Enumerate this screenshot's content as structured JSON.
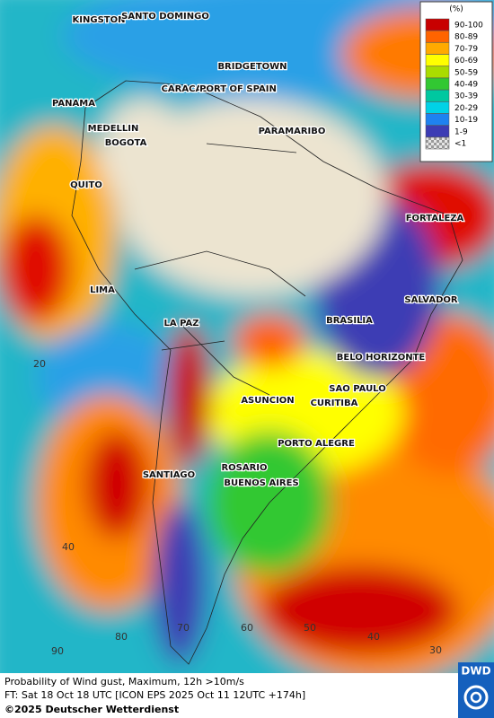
{
  "legend": {
    "title": "(%)",
    "items": [
      {
        "label": "90-100",
        "color": "#c80000"
      },
      {
        "label": "80-89",
        "color": "#ff6400"
      },
      {
        "label": "70-79",
        "color": "#ffaa00"
      },
      {
        "label": "60-69",
        "color": "#ffff00"
      },
      {
        "label": "50-59",
        "color": "#aadc00"
      },
      {
        "label": "40-49",
        "color": "#32c832"
      },
      {
        "label": "30-39",
        "color": "#00c8a0"
      },
      {
        "label": "20-29",
        "color": "#00d2e6"
      },
      {
        "label": "10-19",
        "color": "#1e82f0"
      },
      {
        "label": "1-9",
        "color": "#3c3cb4"
      },
      {
        "label": "<1",
        "color": "#bdbdbd"
      }
    ]
  },
  "cities": [
    "KINGSTON",
    "SANTO DOMINGO",
    "BRIDGETOWN",
    "CARACAS",
    "PORT OF SPAIN",
    "PANAMA",
    "MEDELLIN",
    "BOGOTA",
    "PARAMARIBO",
    "QUITO",
    "FORTALEZA",
    "LIMA",
    "SALVADOR",
    "BRASILIA",
    "LA PAZ",
    "BELO HORIZONTE",
    "SAO PAULO",
    "ASUNCION",
    "CURITIBA",
    "PORTO ALEGRE",
    "SANTIAGO",
    "ROSARIO",
    "BUENOS AIRES"
  ],
  "grid_labels": {
    "lat": [
      "20",
      "40"
    ],
    "lon": [
      "90",
      "80",
      "70",
      "60",
      "50",
      "40",
      "30"
    ]
  },
  "caption": {
    "line1": "Probability of Wind gust, Maximum, 12h >10m/s",
    "line2": "FT: Sat 18 Oct 18 UTC [ICON EPS 2025 Oct 11 12UTC +174h]",
    "line3": "©2025 Deutscher Wetterdienst"
  },
  "logo": "DWD"
}
